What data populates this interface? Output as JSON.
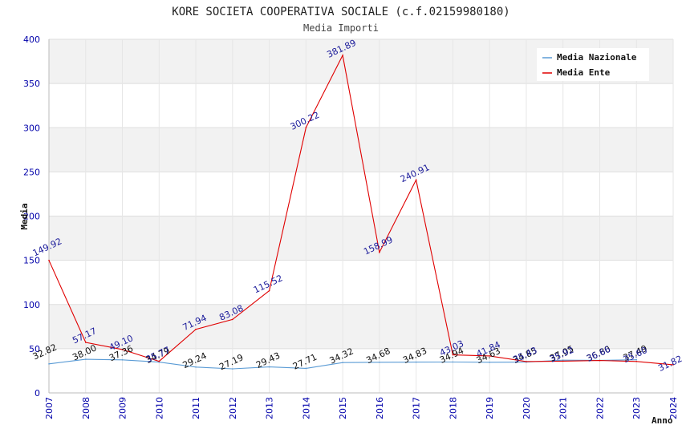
{
  "chart_data": {
    "type": "line",
    "title": "KORE SOCIETA COOPERATIVA SOCIALE (c.f.02159980180)",
    "subtitle": "Media Importi",
    "xlabel": "Anno",
    "ylabel": "Media",
    "ylim": [
      0,
      400
    ],
    "y_ticks": [
      "0",
      "50",
      "100",
      "150",
      "200",
      "250",
      "300",
      "350",
      "400"
    ],
    "x": [
      "2007",
      "2008",
      "2009",
      "2010",
      "2011",
      "2012",
      "2013",
      "2014",
      "2015",
      "2016",
      "2017",
      "2018",
      "2019",
      "2020",
      "2021",
      "2022",
      "2023",
      "2024"
    ],
    "grid": true,
    "legend_position": "top-right",
    "series": [
      {
        "name": "Media Nazionale",
        "color": "#5a9bd5",
        "values": [
          32.82,
          38.0,
          37.36,
          34.79,
          29.24,
          27.19,
          29.43,
          27.71,
          34.32,
          34.68,
          34.83,
          34.94,
          34.63,
          34.85,
          37.05,
          36.8,
          37.49,
          null
        ],
        "labels": [
          "32.82",
          "38.00",
          "37.36",
          "34.79",
          "29.24",
          "27.19",
          "29.43",
          "27.71",
          "34.32",
          "34.68",
          "34.83",
          "34.94",
          "34.63",
          "34.85",
          "37.05",
          "36.80",
          "37.49",
          ""
        ]
      },
      {
        "name": "Media Ente",
        "color": "#e00000",
        "values": [
          149.92,
          57.17,
          49.1,
          35.77,
          71.94,
          83.08,
          115.52,
          300.22,
          381.89,
          158.99,
          240.91,
          43.03,
          41.84,
          35.43,
          35.92,
          36.66,
          35.6,
          31.82
        ],
        "labels": [
          "149.92",
          "57.17",
          "49.10",
          "35.77",
          "71.94",
          "83.08",
          "115.52",
          "300.22",
          "381.89",
          "158.99",
          "240.91",
          "43.03",
          "41.84",
          "35.43",
          "35.92",
          "36.66",
          "35.60",
          "31.82"
        ]
      }
    ]
  }
}
